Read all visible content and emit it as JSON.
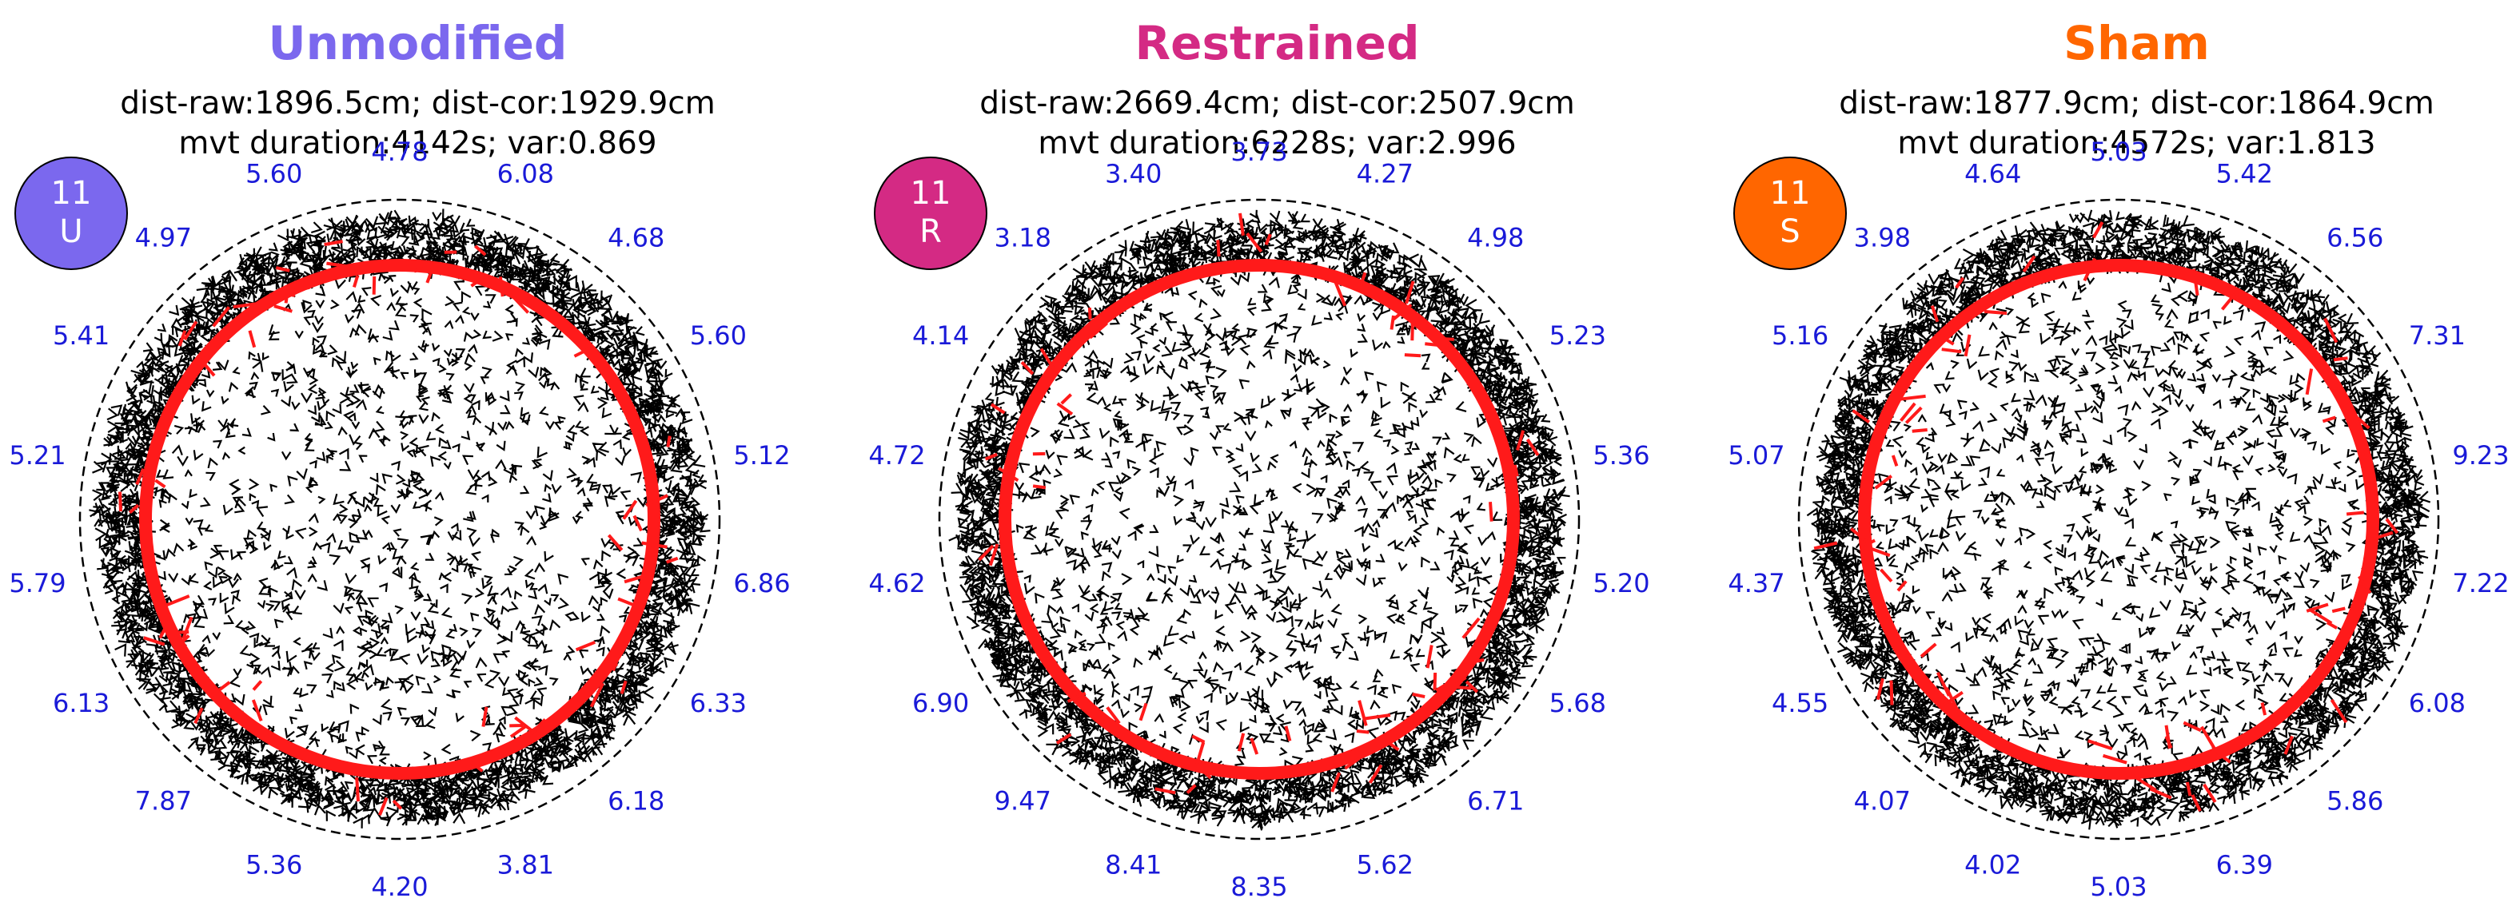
{
  "chart_data": [
    {
      "type": "polar-trajectory",
      "title": "Unmodified",
      "title_color": "#7b68ee",
      "stats_line1": "dist-raw:1896.5cm; dist-cor:1929.9cm",
      "stats_line2": "mvt duration:4142s; var:0.869",
      "badge": {
        "number": "11",
        "letter": "U",
        "color": "#7b68ee"
      },
      "segment_values": [
        "4.78",
        "6.08",
        "4.68",
        "5.60",
        "5.12",
        "6.86",
        "6.33",
        "6.18",
        "3.81",
        "4.20",
        "5.36",
        "7.87",
        "6.13",
        "5.79",
        "5.21",
        "5.41",
        "4.97",
        "5.60"
      ]
    },
    {
      "type": "polar-trajectory",
      "title": "Restrained",
      "title_color": "#d42a84",
      "stats_line1": "dist-raw:2669.4cm; dist-cor:2507.9cm",
      "stats_line2": "mvt duration:6228s; var:2.996",
      "badge": {
        "number": "11",
        "letter": "R",
        "color": "#d42a84"
      },
      "segment_values": [
        "3.73",
        "4.27",
        "4.98",
        "5.23",
        "5.36",
        "5.20",
        "5.68",
        "6.71",
        "5.62",
        "8.35",
        "8.41",
        "9.47",
        "6.90",
        "4.62",
        "4.72",
        "4.14",
        "3.18",
        "3.40"
      ]
    },
    {
      "type": "polar-trajectory",
      "title": "Sham",
      "title_color": "#ff6600",
      "stats_line1": "dist-raw:1877.9cm; dist-cor:1864.9cm",
      "stats_line2": "mvt duration:4572s; var:1.813",
      "badge": {
        "number": "11",
        "letter": "S",
        "color": "#ff6600"
      },
      "segment_values": [
        "5.03",
        "5.42",
        "6.56",
        "7.31",
        "9.23",
        "7.22",
        "6.08",
        "5.86",
        "6.39",
        "5.03",
        "4.02",
        "4.07",
        "4.55",
        "4.37",
        "5.07",
        "5.16",
        "3.98",
        "4.64"
      ]
    }
  ]
}
